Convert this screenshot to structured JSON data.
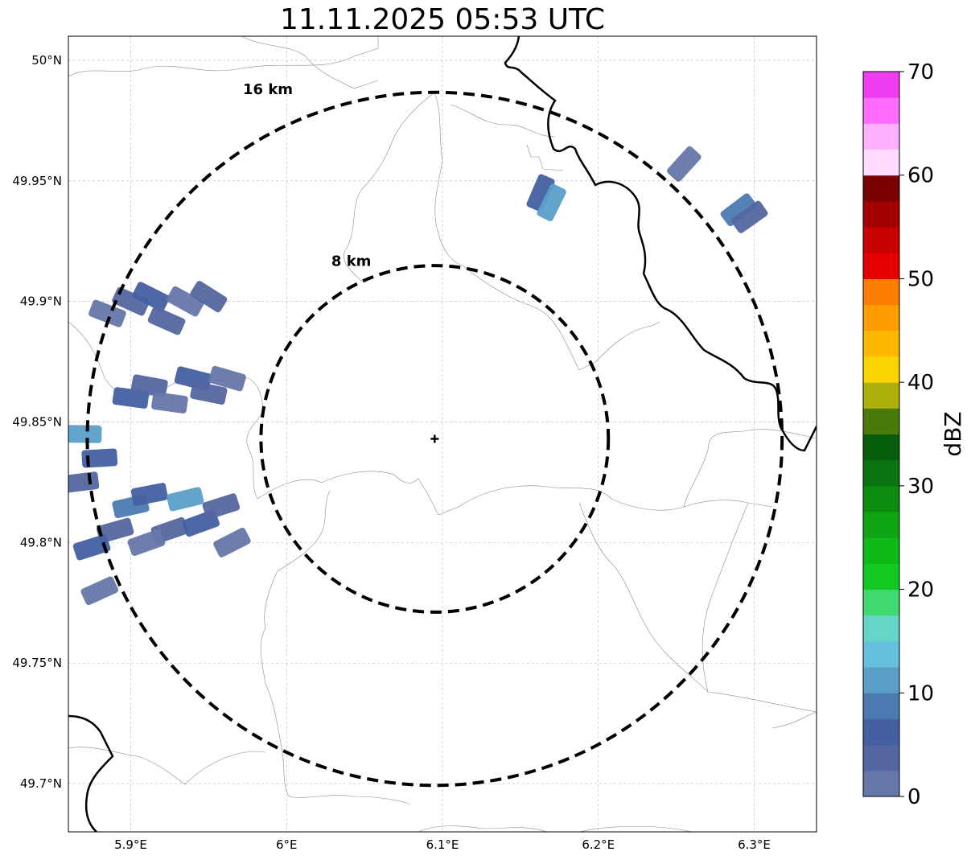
{
  "title": "11.11.2025 05:53 UTC",
  "map": {
    "lon_range": [
      5.86,
      6.34
    ],
    "lat_range": [
      49.68,
      50.01
    ],
    "lon_ticks": [
      {
        "value": 5.9,
        "label": "5.9°E"
      },
      {
        "value": 6.0,
        "label": "6°E"
      },
      {
        "value": 6.1,
        "label": "6.1°E"
      },
      {
        "value": 6.2,
        "label": "6.2°E"
      },
      {
        "value": 6.3,
        "label": "6.3°E"
      }
    ],
    "lat_ticks": [
      {
        "value": 49.7,
        "label": "49.7°N"
      },
      {
        "value": 49.75,
        "label": "49.75°N"
      },
      {
        "value": 49.8,
        "label": "49.8°N"
      },
      {
        "value": 49.85,
        "label": "49.85°N"
      },
      {
        "value": 49.9,
        "label": "49.9°N"
      },
      {
        "value": 49.95,
        "label": "49.95°N"
      },
      {
        "value": 50.0,
        "label": "50°N"
      }
    ],
    "grid": true,
    "radar_site": {
      "lon": 6.095,
      "lat": 49.843
    },
    "range_rings": [
      {
        "radius_km": 8,
        "label": "8 km"
      },
      {
        "radius_km": 16,
        "label": "16 km"
      }
    ]
  },
  "colorbar": {
    "label": "dBZ",
    "min": 0,
    "max": 70,
    "step": 5,
    "tick_values": [
      0,
      10,
      20,
      30,
      40,
      50,
      60,
      70
    ],
    "colors": [
      "#6577a8",
      "#5466a0",
      "#4560a2",
      "#4b7bb0",
      "#5a9fc8",
      "#66c0dc",
      "#64d5c7",
      "#40d870",
      "#13c821",
      "#10b818",
      "#0ea412",
      "#0b8c0e",
      "#087310",
      "#045d0a",
      "#4a7a0a",
      "#adb00a",
      "#fcd500",
      "#ffb800",
      "#ff9c00",
      "#ff7e00",
      "#e50000",
      "#c70000",
      "#a30000",
      "#780000",
      "#ffdcff",
      "#ffb0ff",
      "#ff6cff",
      "#f03cf0"
    ]
  },
  "echoes": {
    "palette_dbz": [
      1.5,
      3.5,
      6,
      8.5,
      11,
      13.5
    ],
    "cells": [
      {
        "lon": 5.9,
        "lat": 49.9,
        "dbz": 3.5
      },
      {
        "lon": 5.885,
        "lat": 49.895,
        "dbz": 1.5
      },
      {
        "lon": 5.913,
        "lat": 49.902,
        "dbz": 6
      },
      {
        "lon": 5.923,
        "lat": 49.892,
        "dbz": 3.5
      },
      {
        "lon": 5.935,
        "lat": 49.9,
        "dbz": 1.5
      },
      {
        "lon": 5.95,
        "lat": 49.902,
        "dbz": 3.5
      },
      {
        "lon": 5.9,
        "lat": 49.86,
        "dbz": 6
      },
      {
        "lon": 5.912,
        "lat": 49.865,
        "dbz": 3.5
      },
      {
        "lon": 5.925,
        "lat": 49.858,
        "dbz": 1.5
      },
      {
        "lon": 5.94,
        "lat": 49.868,
        "dbz": 6
      },
      {
        "lon": 5.95,
        "lat": 49.862,
        "dbz": 3.5
      },
      {
        "lon": 5.962,
        "lat": 49.868,
        "dbz": 1.5
      },
      {
        "lon": 5.87,
        "lat": 49.845,
        "dbz": 11
      },
      {
        "lon": 5.88,
        "lat": 49.835,
        "dbz": 6
      },
      {
        "lon": 5.868,
        "lat": 49.825,
        "dbz": 3.5
      },
      {
        "lon": 5.9,
        "lat": 49.815,
        "dbz": 8.5
      },
      {
        "lon": 5.912,
        "lat": 49.82,
        "dbz": 6
      },
      {
        "lon": 5.925,
        "lat": 49.805,
        "dbz": 3.5
      },
      {
        "lon": 5.935,
        "lat": 49.818,
        "dbz": 11
      },
      {
        "lon": 5.945,
        "lat": 49.808,
        "dbz": 6
      },
      {
        "lon": 5.958,
        "lat": 49.815,
        "dbz": 3.5
      },
      {
        "lon": 5.965,
        "lat": 49.8,
        "dbz": 1.5
      },
      {
        "lon": 5.89,
        "lat": 49.805,
        "dbz": 3.5
      },
      {
        "lon": 5.875,
        "lat": 49.798,
        "dbz": 6
      },
      {
        "lon": 5.91,
        "lat": 49.8,
        "dbz": 1.5
      },
      {
        "lon": 5.88,
        "lat": 49.78,
        "dbz": 1.5
      },
      {
        "lon": 6.163,
        "lat": 49.945,
        "dbz": 6
      },
      {
        "lon": 6.17,
        "lat": 49.941,
        "dbz": 11
      },
      {
        "lon": 6.255,
        "lat": 49.957,
        "dbz": 1.5
      },
      {
        "lon": 6.29,
        "lat": 49.938,
        "dbz": 8.5
      },
      {
        "lon": 6.297,
        "lat": 49.935,
        "dbz": 3.5
      }
    ]
  }
}
